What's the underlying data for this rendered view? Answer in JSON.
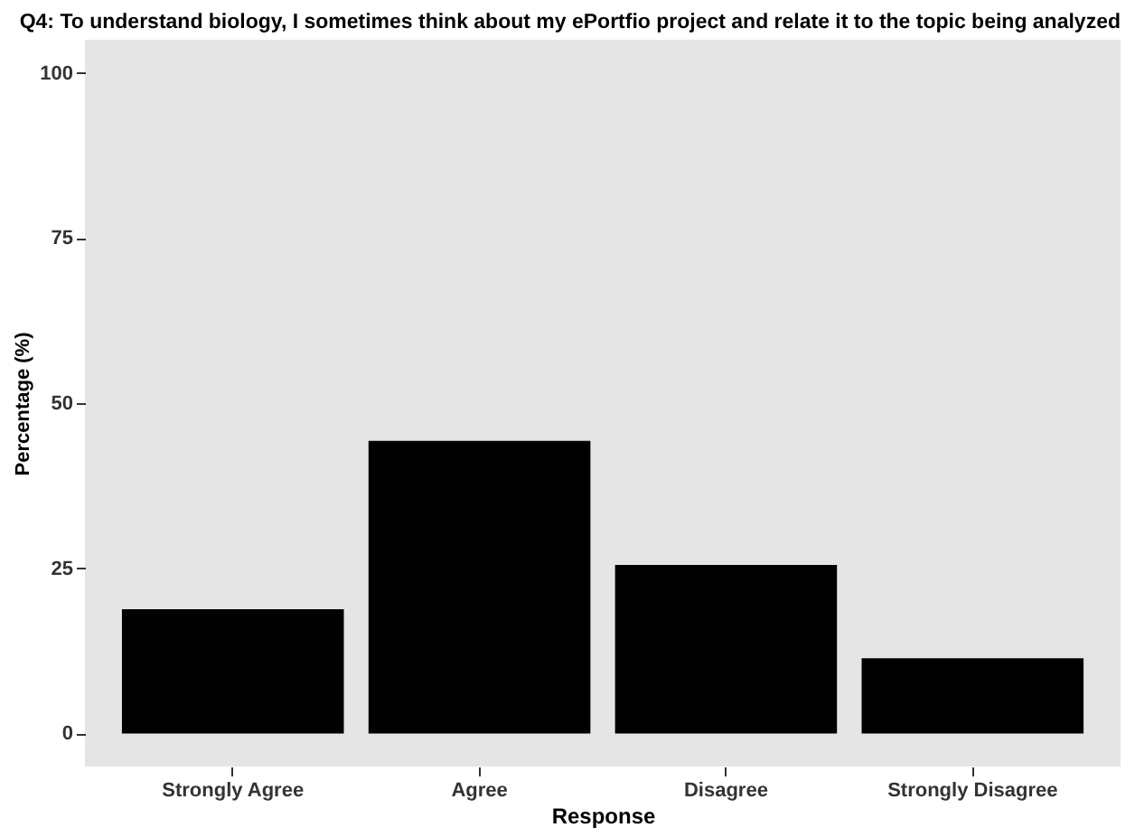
{
  "chart_data": {
    "type": "bar",
    "title": "Q4: To understand biology, I sometimes think about my ePortfio project and relate it to the topic being analyzed",
    "xlabel": "Response",
    "ylabel": "Percentage (%)",
    "categories": [
      "Strongly Agree",
      "Agree",
      "Disagree",
      "Strongly Disagree"
    ],
    "values": [
      18.8,
      44.3,
      25.5,
      11.4
    ],
    "color": "#000000",
    "ylim": [
      -5,
      105
    ],
    "yticks": [
      0,
      25,
      50,
      75,
      100
    ],
    "grid": false
  }
}
